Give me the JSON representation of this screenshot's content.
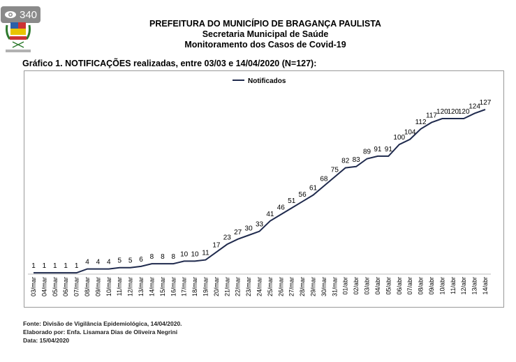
{
  "overlay": {
    "views": "340",
    "icon": "eye-icon"
  },
  "logo": {
    "caption": "PREFEITURA DO MUNICÍPIO DE BRAGANÇA PAULISTA"
  },
  "header": {
    "line1": "PREFEITURA DO MUNICÍPIO DE BRAGANÇA PAULISTA",
    "line2": "Secretaria Municipal de Saúde",
    "line3": "Monitoramento dos Casos de Covid-19"
  },
  "chart_data": {
    "type": "line",
    "title": "Gráfico 1. NOTIFICAÇÕES realizadas, entre 03/03 e 14/04/2020 (N=127):",
    "xlabel": "",
    "ylabel": "",
    "legend": {
      "position": "top-center",
      "entries": [
        "Notificados"
      ]
    },
    "grid": false,
    "ylim": [
      0,
      127
    ],
    "color": "#1f2a4d",
    "categories": [
      "03/mar",
      "04/mar",
      "05/mar",
      "06/mar",
      "07/mar",
      "08/mar",
      "09/mar",
      "10/mar",
      "11/mar",
      "12/mar",
      "13/mar",
      "14/mar",
      "15/mar",
      "16/mar",
      "17/mar",
      "18/mar",
      "19/mar",
      "20/mar",
      "21/mar",
      "22/mar",
      "23/mar",
      "24/mar",
      "25/mar",
      "26/mar",
      "27/mar",
      "28/mar",
      "29/mar",
      "30/mar",
      "31/mar",
      "01/abr",
      "02/abr",
      "03/abr",
      "04/abr",
      "05/abr",
      "06/abr",
      "07/abr",
      "08/abr",
      "09/abr",
      "10/abr",
      "11/abr",
      "12/abr",
      "13/abr",
      "14/abr"
    ],
    "series": [
      {
        "name": "Notificados",
        "values": [
          1,
          1,
          1,
          1,
          1,
          4,
          4,
          4,
          5,
          5,
          6,
          8,
          8,
          8,
          10,
          10,
          11,
          17,
          23,
          27,
          30,
          33,
          41,
          46,
          51,
          56,
          61,
          68,
          75,
          82,
          83,
          89,
          91,
          91,
          100,
          104,
          112,
          117,
          120,
          120,
          120,
          124,
          127
        ]
      }
    ]
  },
  "footer": {
    "source": "Fonte: Divisão de Vigilância Epidemiológica, 14/04/2020.",
    "author": "Elaborado por: Enfa. Lisamara Dias de Oliveira Negrini",
    "date": "Data: 15/04/2020"
  }
}
